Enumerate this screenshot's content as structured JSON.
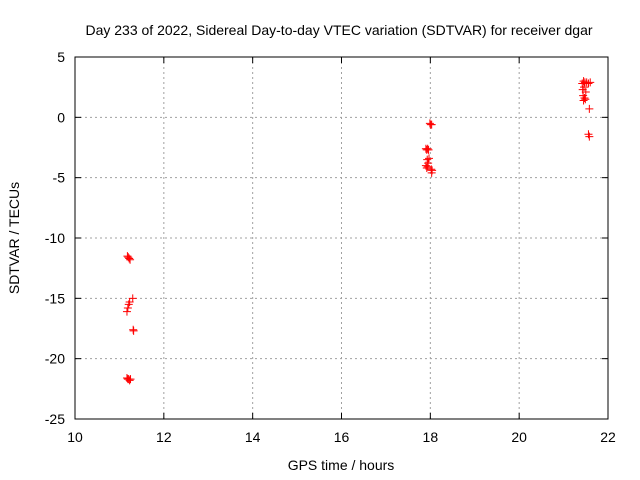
{
  "chart_data": {
    "type": "scatter",
    "title": "Day 233 of 2022, Sidereal Day-to-day VTEC variation (SDTVAR) for receiver dgar",
    "xlabel": "GPS time / hours",
    "ylabel": "SDTVAR / TECUs",
    "xlim": [
      10,
      22
    ],
    "ylim": [
      -25,
      5
    ],
    "xticks": [
      10,
      12,
      14,
      16,
      18,
      20,
      22
    ],
    "yticks": [
      -25,
      -20,
      -15,
      -10,
      -5,
      0,
      5
    ],
    "grid": true,
    "marker": "+",
    "color": "#ff0000",
    "points": [
      [
        11.18,
        -11.5
      ],
      [
        11.2,
        -11.6
      ],
      [
        11.22,
        -11.7
      ],
      [
        11.24,
        -11.8
      ],
      [
        11.17,
        -16.1
      ],
      [
        11.19,
        -15.8
      ],
      [
        11.21,
        -15.5
      ],
      [
        11.23,
        -15.3
      ],
      [
        11.3,
        -15.0
      ],
      [
        11.31,
        -17.6
      ],
      [
        11.32,
        -17.7
      ],
      [
        11.17,
        -21.6
      ],
      [
        11.19,
        -21.7
      ],
      [
        11.21,
        -21.7
      ],
      [
        11.23,
        -21.8
      ],
      [
        11.25,
        -21.7
      ],
      [
        17.99,
        -0.5
      ],
      [
        18.01,
        -0.6
      ],
      [
        18.03,
        -0.6
      ],
      [
        17.9,
        -2.6
      ],
      [
        17.92,
        -2.7
      ],
      [
        17.94,
        -2.6
      ],
      [
        17.96,
        -2.7
      ],
      [
        17.93,
        -3.5
      ],
      [
        17.95,
        -3.8
      ],
      [
        17.97,
        -3.4
      ],
      [
        17.9,
        -4.0
      ],
      [
        17.92,
        -4.2
      ],
      [
        17.94,
        -4.1
      ],
      [
        18.02,
        -4.3
      ],
      [
        18.04,
        -4.4
      ],
      [
        18.03,
        -4.6
      ],
      [
        21.42,
        2.8
      ],
      [
        21.45,
        3.0
      ],
      [
        21.48,
        2.9
      ],
      [
        21.52,
        2.9
      ],
      [
        21.56,
        2.8
      ],
      [
        21.6,
        2.9
      ],
      [
        21.43,
        2.3
      ],
      [
        21.46,
        2.5
      ],
      [
        21.5,
        2.1
      ],
      [
        21.44,
        1.8
      ],
      [
        21.47,
        1.6
      ],
      [
        21.45,
        1.4
      ],
      [
        21.49,
        1.5
      ],
      [
        21.58,
        0.7
      ],
      [
        21.56,
        -1.4
      ],
      [
        21.58,
        -1.6
      ]
    ]
  }
}
